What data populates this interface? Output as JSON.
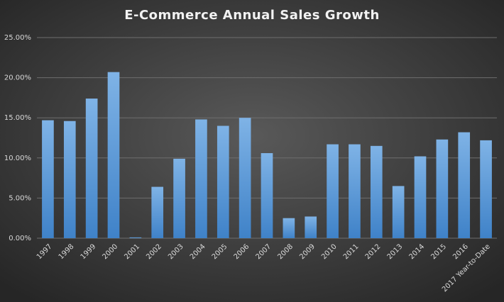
{
  "chart_data": {
    "type": "bar",
    "title": "E-Commerce  Annual Sales Growth",
    "categories": [
      "1997",
      "1998",
      "1999",
      "2000",
      "2001",
      "2002",
      "2003",
      "2004",
      "2005",
      "2006",
      "2007",
      "2008",
      "2009",
      "2010",
      "2011",
      "2012",
      "2013",
      "2014",
      "2015",
      "2016",
      "2017 Year-to-Date"
    ],
    "values": [
      14.7,
      14.6,
      17.4,
      20.7,
      0.1,
      6.4,
      9.9,
      14.8,
      14.0,
      15.0,
      10.6,
      2.5,
      2.7,
      11.7,
      11.7,
      11.5,
      6.5,
      10.2,
      12.3,
      13.2,
      12.2
    ],
    "color": "#5b9bd5",
    "ylim": [
      0,
      25
    ],
    "yticks": [
      {
        "value": 0,
        "label": "0.00%"
      },
      {
        "value": 5,
        "label": "5.00%"
      },
      {
        "value": 10,
        "label": "10.00%"
      },
      {
        "value": 15,
        "label": "15.00%"
      },
      {
        "value": 20,
        "label": "20.00%"
      },
      {
        "value": 25,
        "label": "25.00%"
      }
    ],
    "grid": true
  }
}
